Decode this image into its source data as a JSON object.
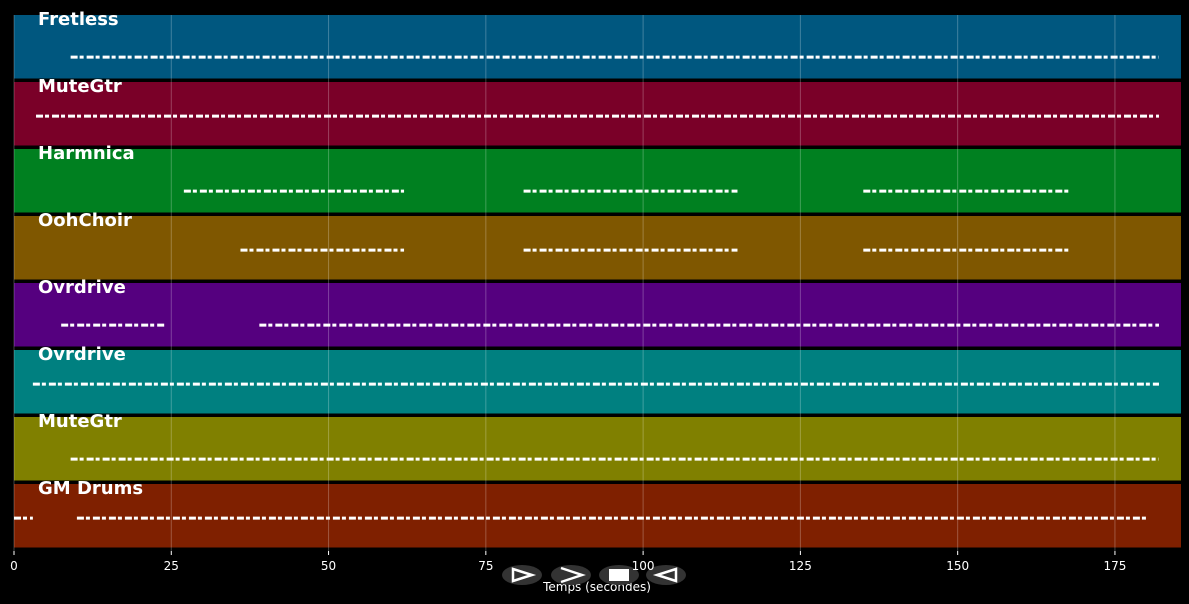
{
  "chart_data": {
    "type": "tracks",
    "xlabel": "Temps (secondes)",
    "xlim": [
      0,
      185.5
    ],
    "xticks": [
      0,
      25,
      50,
      75,
      100,
      125,
      150,
      175
    ],
    "grid": true,
    "tracks": [
      {
        "name": "Fretless",
        "color": "#00577f",
        "segments": [
          {
            "start": 9,
            "end": 182
          }
        ]
      },
      {
        "name": "MuteGtr",
        "color": "#7a0028",
        "segments": [
          {
            "start": 3.5,
            "end": 182
          }
        ]
      },
      {
        "name": "Harmnica",
        "color": "#008020",
        "segments": [
          {
            "start": 27,
            "end": 62
          },
          {
            "start": 81,
            "end": 115
          },
          {
            "start": 135,
            "end": 168
          }
        ]
      },
      {
        "name": "OohChoir",
        "color": "#7f5700",
        "segments": [
          {
            "start": 36,
            "end": 62
          },
          {
            "start": 81,
            "end": 115
          },
          {
            "start": 135,
            "end": 168
          }
        ]
      },
      {
        "name": "Ovrdrive",
        "color": "#55007f",
        "segments": [
          {
            "start": 7.5,
            "end": 24
          },
          {
            "start": 39,
            "end": 182
          }
        ]
      },
      {
        "name": "Ovrdrive",
        "color": "#008080",
        "segments": [
          {
            "start": 3,
            "end": 182
          }
        ]
      },
      {
        "name": "MuteGtr",
        "color": "#808000",
        "segments": [
          {
            "start": 9,
            "end": 182
          }
        ]
      },
      {
        "name": "GM Drums",
        "color": "#7f2000",
        "segments": [
          {
            "start": 0,
            "end": 3
          },
          {
            "start": 10,
            "end": 180
          }
        ]
      }
    ]
  }
}
